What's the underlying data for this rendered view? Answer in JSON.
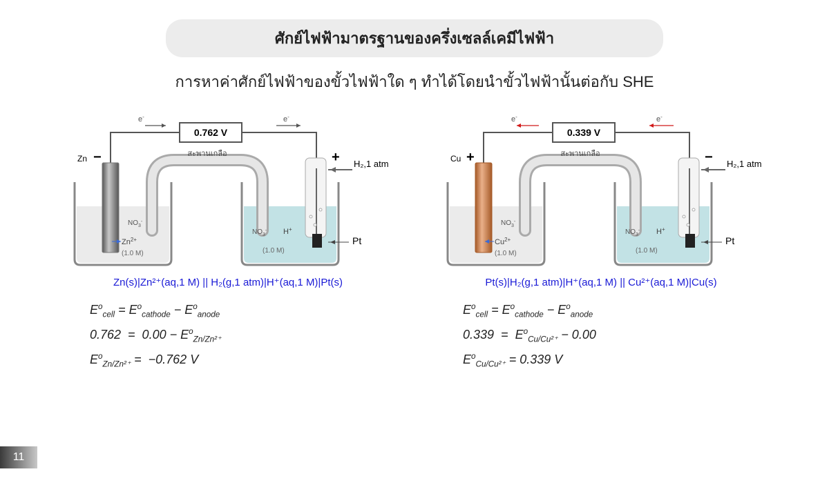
{
  "title": "ศักย์ไฟฟ้ามาตรฐานของครึ่งเซลล์เคมีไฟฟ้า",
  "subtitle": "การหาค่าศักย์ไฟฟ้าของขั้วไฟฟ้าใด ๆ ทำได้โดยนำขั้วไฟฟ้านั้นต่อกับ SHE",
  "page_number": "11",
  "left": {
    "voltage": "0.762 V",
    "electrode_label": "Zn",
    "electrode_fill": "#a8a8a8",
    "electrode_stroke": "#7a7a7a",
    "left_sign": "−",
    "right_sign": "+",
    "bridge_label": "สะพานเกลือ",
    "ion_left": "Zn",
    "ion_left_charge": "2+",
    "conc": "(1.0 M)",
    "no3": "NO",
    "no3_sub": "3",
    "hplus": "H",
    "hplus_sup": "+",
    "h2_label": "H₂,1 atm",
    "pt_label": "Pt",
    "e_label": "e",
    "arrow_color": "#555555",
    "solution_left": "#e8e8e8",
    "solution_right": "#b7dde0",
    "notation": "Zn(s)|Zn²⁺(aq,1 M) || H₂(g,1 atm)|H⁺(aq,1 M)|Pt(s)",
    "eq1_html": "<i>E<sup>o</sup></i><sub>cell</sub> = <i>E<sup>o</sup></i><sub>cathode</sub> − <i>E<sup>o</sup></i><sub>anode</sub>",
    "eq2_html": "0.762 &nbsp;=&nbsp; 0.00 − <i>E<sup>o</sup></i><sub>Zn/Zn²⁺</sub>",
    "eq3_html": "<i>E<sup>o</sup></i><sub>Zn/Zn²⁺</sub> = &nbsp;−0.762 V"
  },
  "right": {
    "voltage": "0.339 V",
    "electrode_label": "Cu",
    "electrode_fill": "#d88a56",
    "electrode_stroke": "#b06838",
    "left_sign": "+",
    "right_sign": "−",
    "bridge_label": "สะพานเกลือ",
    "ion_left": "Cu",
    "ion_left_charge": "2+",
    "conc": "(1.0 M)",
    "no3": "NO",
    "no3_sub": "3",
    "hplus": "H",
    "hplus_sup": "+",
    "h2_label": "H₂,1 atm",
    "pt_label": "Pt",
    "e_label": "e",
    "arrow_color": "#d11919",
    "solution_left": "#e8e8e8",
    "solution_right": "#b7dde0",
    "notation": "Pt(s)|H₂(g,1 atm)|H⁺(aq,1 M) || Cu²⁺(aq,1 M)|Cu(s)",
    "eq1_html": "<i>E<sup>o</sup></i><sub>cell</sub> = <i>E<sup>o</sup></i><sub>cathode</sub> − <i>E<sup>o</sup></i><sub>anode</sub>",
    "eq2_html": "0.339 &nbsp;=&nbsp; <i>E<sup>o</sup></i><sub>Cu/Cu²⁺</sub> − 0.00",
    "eq3_html": "<i>E<sup>o</sup></i><sub>Cu/Cu²⁺</sub> = 0.339 V"
  }
}
